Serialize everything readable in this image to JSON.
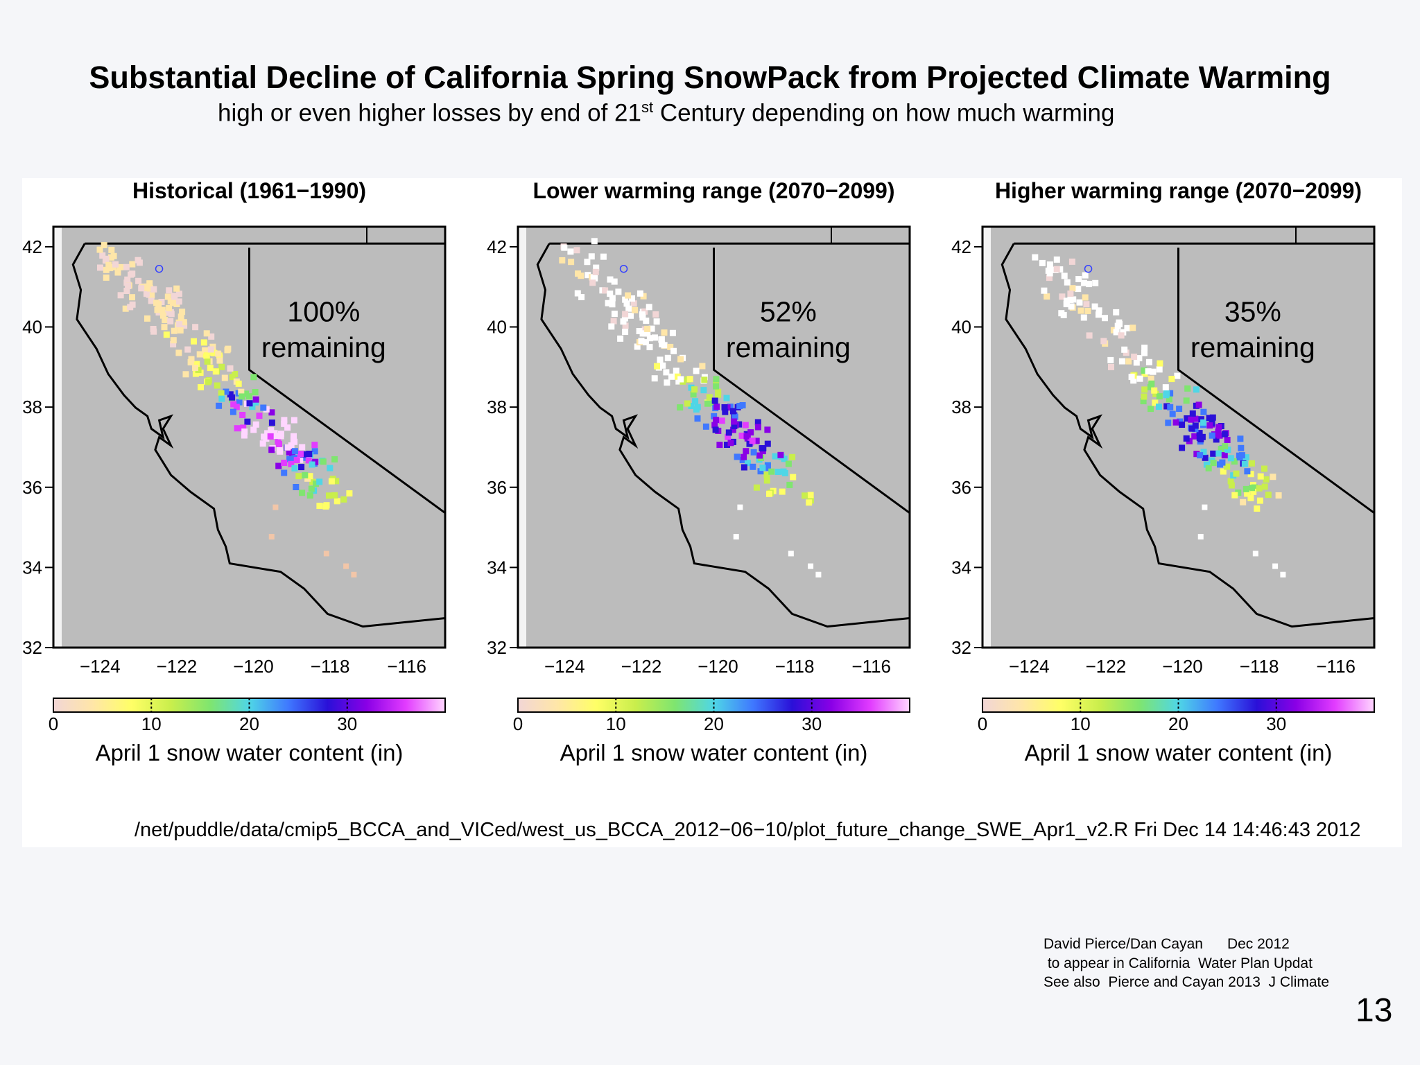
{
  "slide": {
    "title": "Substantial Decline of California Spring SnowPack from Projected Climate Warming",
    "subtitle_before": "high or even higher losses by end of 21",
    "subtitle_sup": "st",
    "subtitle_after": " Century  depending on how much warming",
    "page_number": "13"
  },
  "figure": {
    "file_path": "/net/puddle/data/cmip5_BCCA_and_VICed/west_us_BCCA_2012−06−10/plot_future_change_SWE_Apr1_v2.R Fri Dec 14 14:46:43 2012",
    "panels": [
      {
        "title": "Historical (1961−1990)",
        "pct": "100%",
        "remaining": "remaining",
        "colorbar_label": "April 1 snow water content (in)",
        "level": 1.0
      },
      {
        "title": "Lower warming range (2070−2099)",
        "pct": "52%",
        "remaining": "remaining",
        "colorbar_label": "April 1 snow water content (in)",
        "level": 0.52
      },
      {
        "title": "Higher warming range (2070−2099)",
        "pct": "35%",
        "remaining": "remaining",
        "colorbar_label": "April 1 snow water content (in)",
        "level": 0.35
      }
    ],
    "lat_ticks": [
      "32",
      "34",
      "36",
      "38",
      "40",
      "42"
    ],
    "lon_ticks": [
      "−124",
      "−122",
      "−120",
      "−118",
      "−116"
    ],
    "colorbar_ticks": [
      "0",
      "10",
      "20",
      "30"
    ],
    "colorbar_stops": [
      "#f2d6d6",
      "#ffe6a8",
      "#ffff66",
      "#c9ee4c",
      "#7fe56f",
      "#4fd6e6",
      "#3f78ff",
      "#2a10d8",
      "#8a00e6",
      "#e23cff",
      "#ffd6ff"
    ],
    "colors": {
      "land": "#bcbcbc",
      "map_bg": "#bcbcbc",
      "outline": "#000000"
    }
  },
  "credits": {
    "line1": "David Pierce/Dan Cayan      Dec 2012",
    "line2": " to appear in California  Water Plan Updat",
    "line3": "See also  Pierce and Cayan 2013  J Climate"
  }
}
